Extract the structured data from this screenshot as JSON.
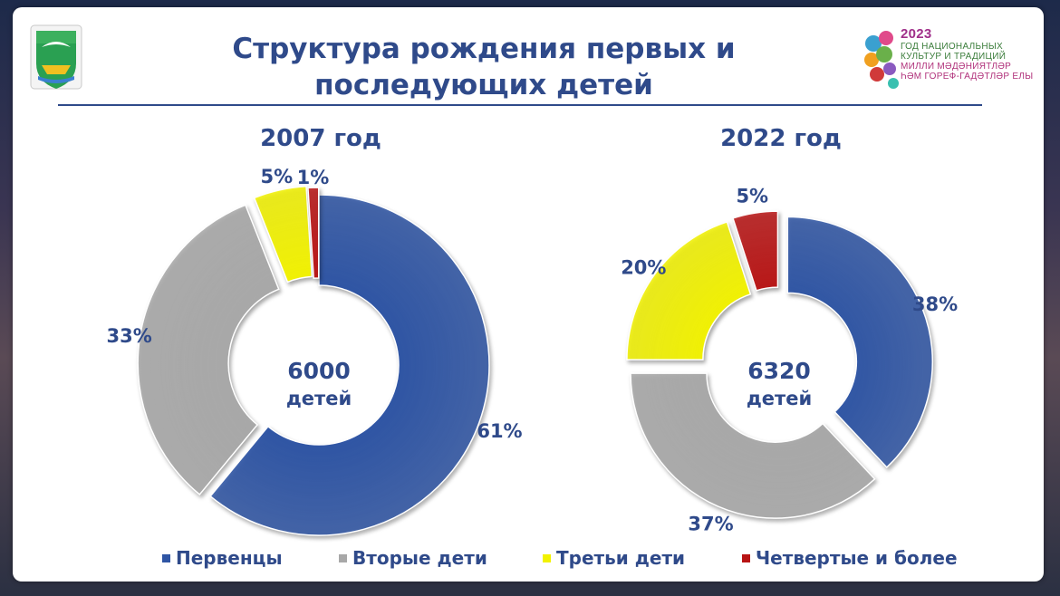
{
  "title": "Структура рождения первых и последующих детей",
  "logo": {
    "year": "2023",
    "lines": [
      "ГОД НАЦИОНАЛЬНЫХ",
      "КУЛЬТУР И ТРАДИЦИЙ",
      "МИЛЛИ МӘДӘНИЯТЛӘР",
      "ҺӘМ ГОРЕФ-ГАДӘТЛӘР ЕЛЫ"
    ]
  },
  "chart_data": [
    {
      "type": "pie",
      "title": "2007 год",
      "center_number": "6000",
      "center_unit": "детей",
      "categories": [
        "Первенцы",
        "Вторые дети",
        "Третьи дети",
        "Четвертые и более"
      ],
      "values": [
        61,
        33,
        5,
        1
      ],
      "value_labels": [
        "61%",
        "33%",
        "5%",
        "1%"
      ],
      "colors": [
        "#2f55a4",
        "#a8a8a8",
        "#f2f200",
        "#b81414"
      ]
    },
    {
      "type": "pie",
      "title": "2022 год",
      "center_number": "6320",
      "center_unit": "детей",
      "categories": [
        "Первенцы",
        "Вторые дети",
        "Третьи дети",
        "Четвертые и более"
      ],
      "values": [
        38,
        37,
        20,
        5
      ],
      "value_labels": [
        "38%",
        "37%",
        "20%",
        "5%"
      ],
      "colors": [
        "#2f55a4",
        "#a8a8a8",
        "#f2f200",
        "#b81414"
      ]
    }
  ],
  "legend": [
    {
      "label": "Первенцы",
      "color": "#2f55a4"
    },
    {
      "label": "Вторые дети",
      "color": "#a8a8a8"
    },
    {
      "label": "Третьи дети",
      "color": "#f2f200"
    },
    {
      "label": "Четвертые и более",
      "color": "#b81414"
    }
  ],
  "colors": {
    "text": "#2f4a8a"
  }
}
